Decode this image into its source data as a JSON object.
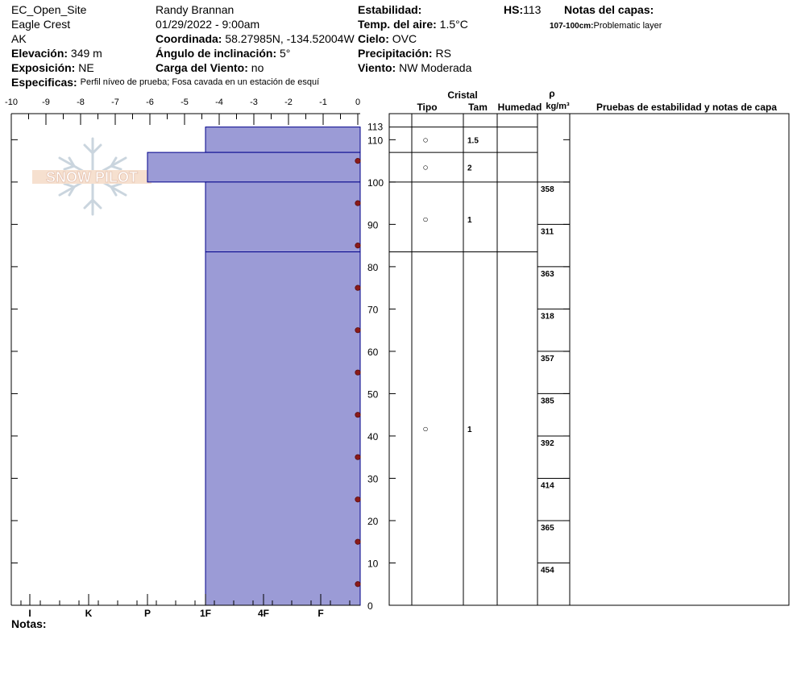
{
  "header": {
    "site": "EC_Open_Site",
    "location": "Eagle Crest",
    "state": "AK",
    "elevation_label": "Elevación:",
    "elevation_value": "349 m",
    "aspect_label": "Exposición:",
    "aspect_value": "NE",
    "specifics_label": "Especificas:",
    "specifics_value": "Perfil níveo de prueba; Fosa cavada en un estación de esquí",
    "observer": "Randy Brannan",
    "datetime": "01/29/2022 - 9:00am",
    "coord_label": "Coordinada:",
    "coord_value": "58.27985N, -134.52004W",
    "slope_label": "Ángulo de inclinación:",
    "slope_value": "5°",
    "wind_load_label": "Carga del Viento:",
    "wind_load_value": "no",
    "stability_label": "Estabilidad:",
    "air_temp_label": "Temp. del aire:",
    "air_temp_value": "1.5°C",
    "sky_label": "Cielo:",
    "sky_value": "OVC",
    "precip_label": "Precipitación:",
    "precip_value": "RS",
    "wind_label": "Viento:",
    "wind_value": "NW Moderada",
    "hs_label": "HS:",
    "hs_value": "113",
    "layer_notes_label": "Notas del capas:",
    "layer_note_range": "107-100cm:",
    "layer_note_text": "Problematic layer"
  },
  "notes_label": "Notas:",
  "logo_text": "SNOW PILOT",
  "table_headers": {
    "crystal": "Cristal",
    "type": "Tipo",
    "size": "Tam",
    "moisture": "Humedad",
    "rho": "ρ",
    "rho_unit": "kg/m³",
    "tests": "Pruebas de estabilidad y notas de capa"
  },
  "colors": {
    "layer_fill": "#9b9bd6",
    "layer_stroke": "#00008b",
    "temp_marker": "#8b1a1a"
  },
  "chart_data": {
    "type": "snow-profile",
    "x_top_ticks": [
      "-10",
      "-9",
      "-8",
      "-7",
      "-6",
      "-5",
      "-4",
      "-3",
      "-2",
      "-1",
      "0"
    ],
    "x_top_range": [
      -10,
      0
    ],
    "hardness_ticks": [
      "I",
      "K",
      "P",
      "1F",
      "4F",
      "F"
    ],
    "y_range": [
      0,
      113
    ],
    "y_ticks": [
      0,
      10,
      20,
      30,
      40,
      50,
      60,
      70,
      80,
      90,
      100,
      110,
      113
    ],
    "layers": [
      {
        "top": 113,
        "bottom": 107,
        "hardness": "1F",
        "crystal": "○",
        "size": "1.5"
      },
      {
        "top": 107,
        "bottom": 100,
        "hardness": "P",
        "crystal": "○",
        "size": "2"
      },
      {
        "top": 100,
        "bottom": 83.5,
        "hardness": "1F",
        "crystal": "○",
        "size": "1"
      },
      {
        "top": 83.5,
        "bottom": 0,
        "hardness": "1F",
        "crystal": "○",
        "size": "1"
      }
    ],
    "temperature_points": [
      {
        "depth": 105,
        "temp": 0
      },
      {
        "depth": 95,
        "temp": 0
      },
      {
        "depth": 85,
        "temp": 0
      },
      {
        "depth": 75,
        "temp": 0
      },
      {
        "depth": 65,
        "temp": 0
      },
      {
        "depth": 55,
        "temp": 0
      },
      {
        "depth": 45,
        "temp": 0
      },
      {
        "depth": 35,
        "temp": 0
      },
      {
        "depth": 25,
        "temp": 0
      },
      {
        "depth": 15,
        "temp": 0
      },
      {
        "depth": 5,
        "temp": 0
      }
    ],
    "density": [
      {
        "top": 100,
        "bottom": 90,
        "value": "358"
      },
      {
        "top": 90,
        "bottom": 80,
        "value": "311"
      },
      {
        "top": 80,
        "bottom": 70,
        "value": "363"
      },
      {
        "top": 70,
        "bottom": 60,
        "value": "318"
      },
      {
        "top": 60,
        "bottom": 50,
        "value": "357"
      },
      {
        "top": 50,
        "bottom": 40,
        "value": "385"
      },
      {
        "top": 40,
        "bottom": 30,
        "value": "392"
      },
      {
        "top": 30,
        "bottom": 20,
        "value": "414"
      },
      {
        "top": 20,
        "bottom": 10,
        "value": "365"
      },
      {
        "top": 10,
        "bottom": 0,
        "value": "454"
      }
    ]
  }
}
